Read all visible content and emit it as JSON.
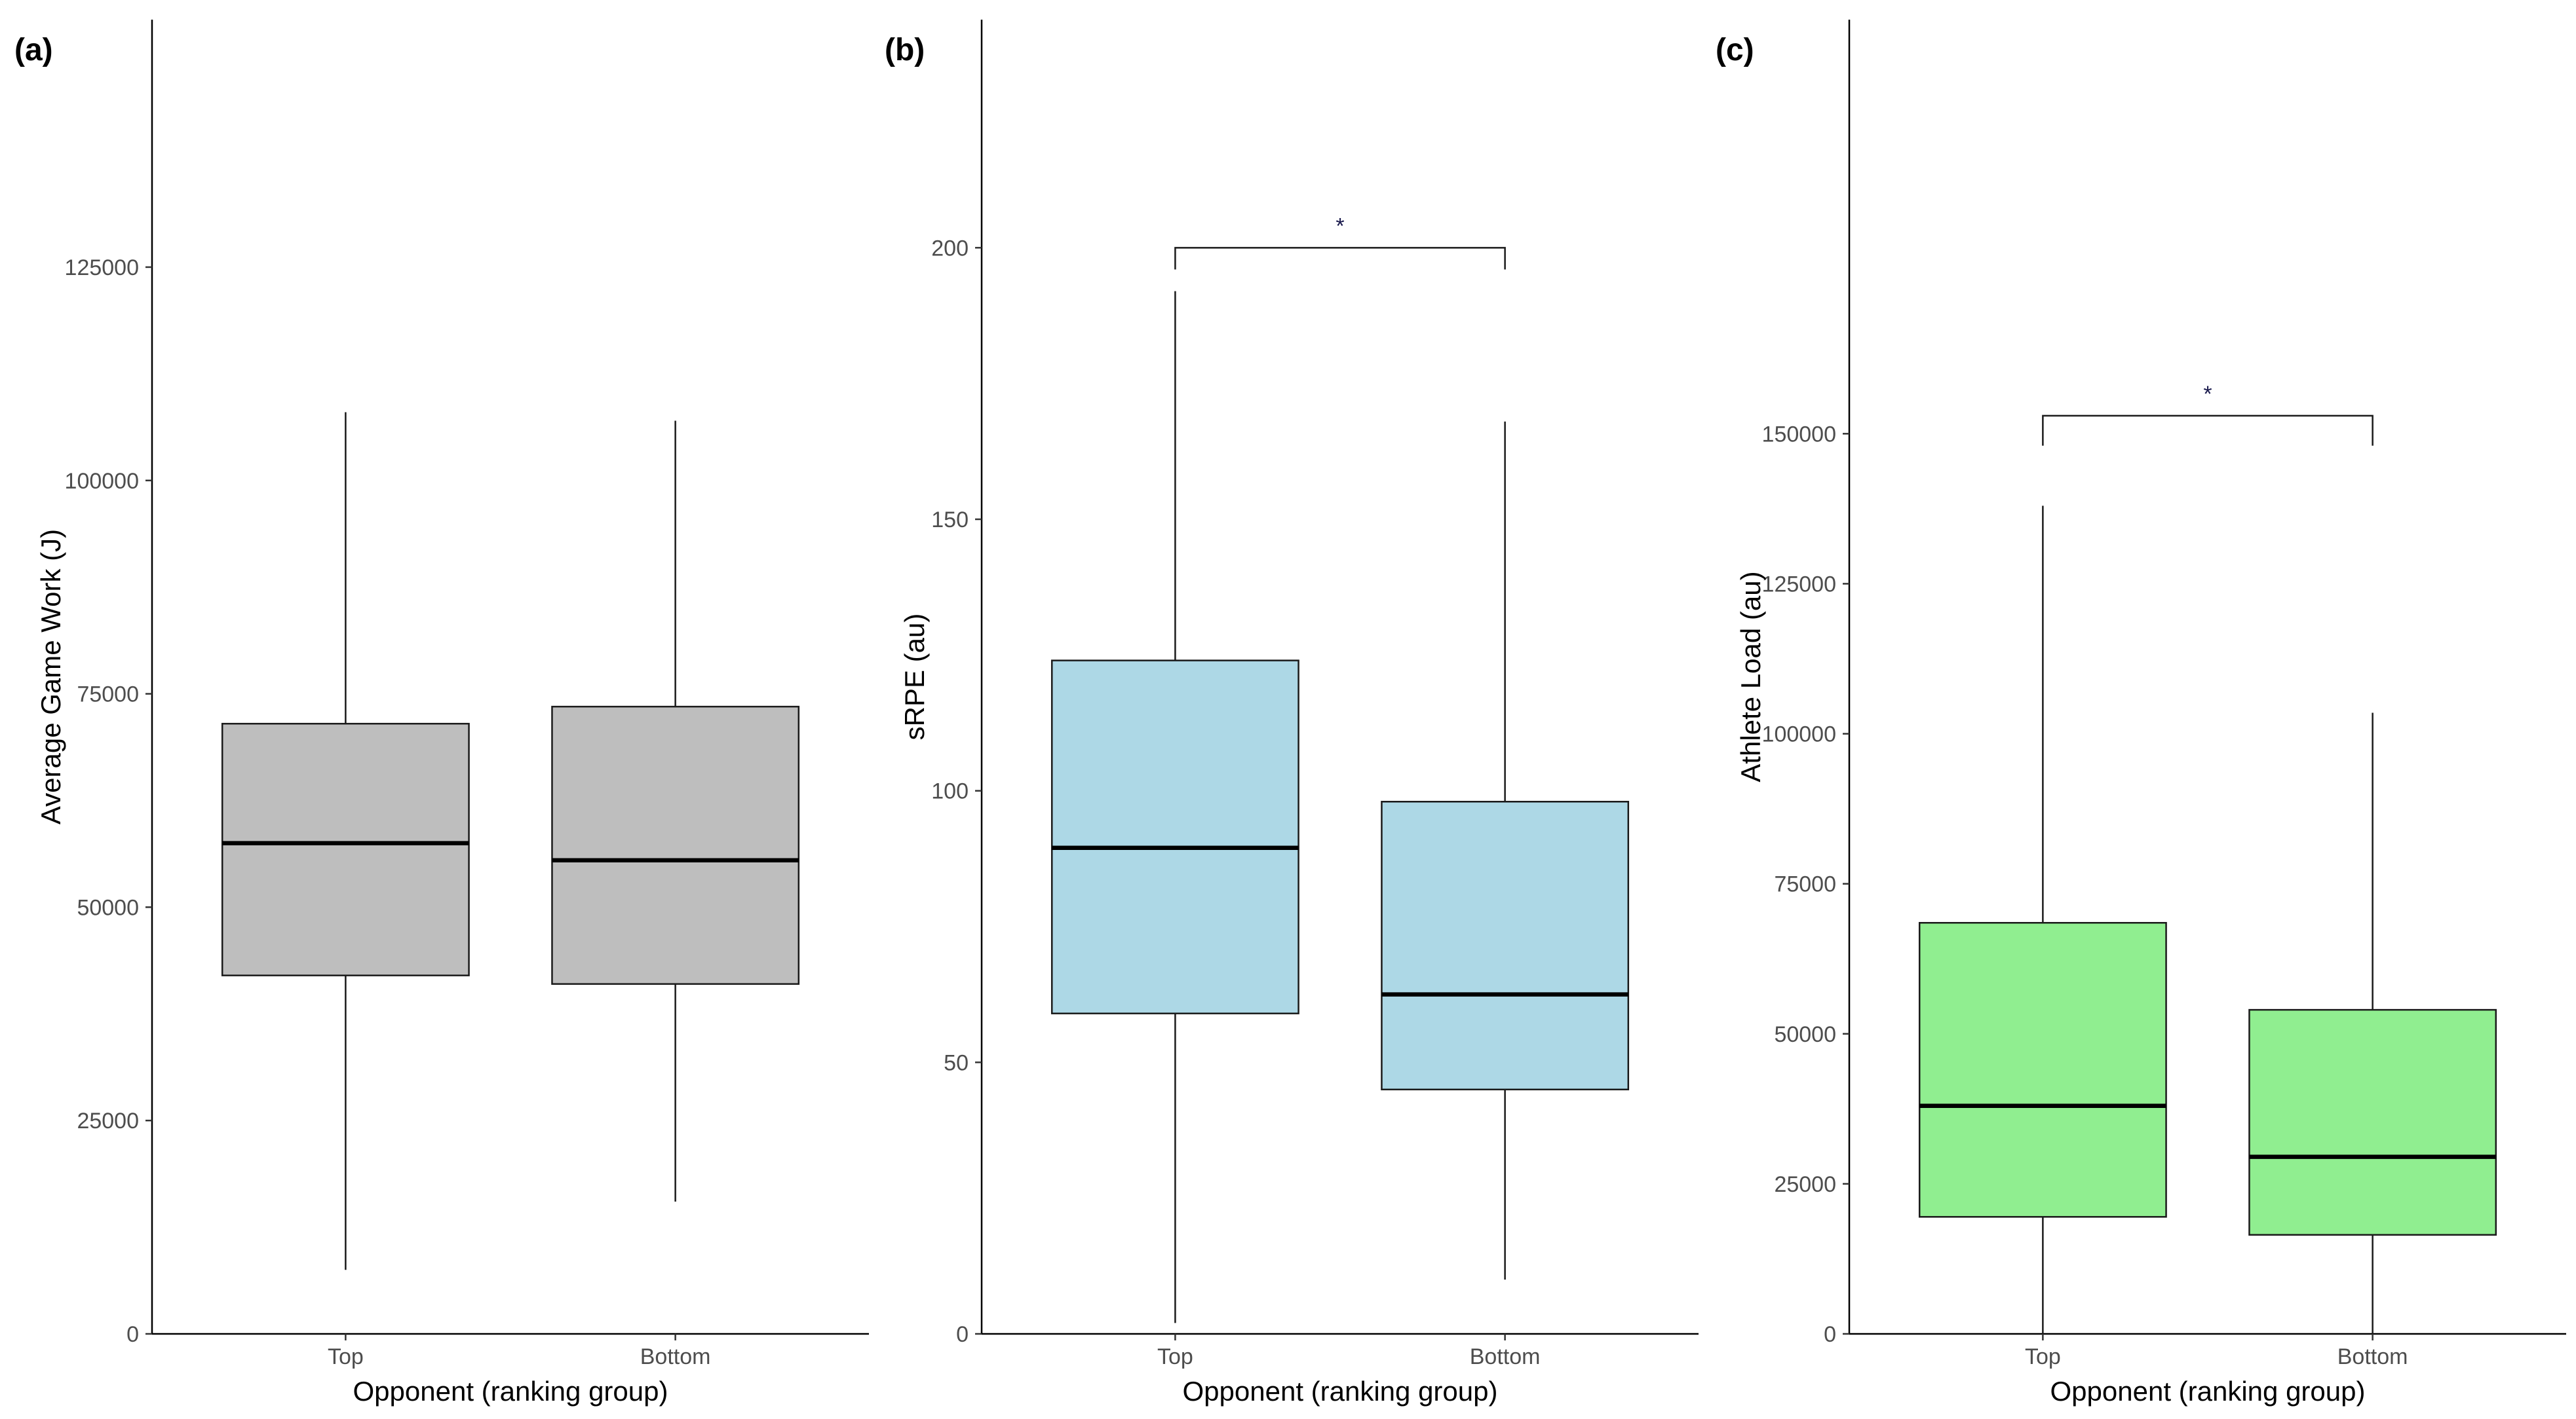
{
  "chart_data": [
    {
      "panel_label": "(a)",
      "type": "boxplot",
      "xlabel": "Opponent (ranking group)",
      "ylabel": "Average Game Work (J)",
      "ylim": [
        0,
        154000
      ],
      "yticks": [
        0,
        25000,
        50000,
        75000,
        100000,
        125000
      ],
      "ytick_labels": [
        "0",
        "25000",
        "50000",
        "75000",
        "100000",
        "125000"
      ],
      "categories": [
        "Top",
        "Bottom"
      ],
      "fill_color": "#bebebe",
      "boxes": [
        {
          "category": "Top",
          "whisker_low": 7500,
          "q1": 42000,
          "median": 57500,
          "q3": 71500,
          "whisker_high": 108000
        },
        {
          "category": "Bottom",
          "whisker_low": 15500,
          "q1": 41000,
          "median": 55500,
          "q3": 73500,
          "whisker_high": 107000
        }
      ],
      "significance": null
    },
    {
      "panel_label": "(b)",
      "type": "boxplot",
      "xlabel": "Opponent (ranking group)",
      "ylabel": "sRPE (au)",
      "ylim": [
        0,
        242
      ],
      "yticks": [
        0,
        50,
        100,
        150,
        200
      ],
      "ytick_labels": [
        "0",
        "50",
        "100",
        "150",
        "200"
      ],
      "categories": [
        "Top",
        "Bottom"
      ],
      "fill_color": "#add8e6",
      "boxes": [
        {
          "category": "Top",
          "whisker_low": 2,
          "q1": 59,
          "median": 89.5,
          "q3": 124,
          "whisker_high": 192
        },
        {
          "category": "Bottom",
          "whisker_low": 10,
          "q1": 45,
          "median": 62.5,
          "q3": 98,
          "whisker_high": 168
        }
      ],
      "significance": {
        "label": "*",
        "y": 200,
        "y_drop": 196
      }
    },
    {
      "panel_label": "(c)",
      "type": "boxplot",
      "xlabel": "Opponent (ranking group)",
      "ylabel": "Athlete Load (au)",
      "ylim": [
        0,
        219000
      ],
      "yticks": [
        0,
        25000,
        50000,
        75000,
        100000,
        125000,
        150000
      ],
      "ytick_labels": [
        "0",
        "25000",
        "50000",
        "75000",
        "100000",
        "125000",
        "150000"
      ],
      "categories": [
        "Top",
        "Bottom"
      ],
      "fill_color": "#90ee90",
      "boxes": [
        {
          "category": "Top",
          "whisker_low": 0,
          "q1": 19500,
          "median": 38000,
          "q3": 68500,
          "whisker_high": 138000
        },
        {
          "category": "Bottom",
          "whisker_low": 0,
          "q1": 16500,
          "median": 29500,
          "q3": 54000,
          "whisker_high": 103500
        }
      ],
      "significance": {
        "label": "*",
        "y": 153000,
        "y_drop": 148000
      }
    }
  ]
}
